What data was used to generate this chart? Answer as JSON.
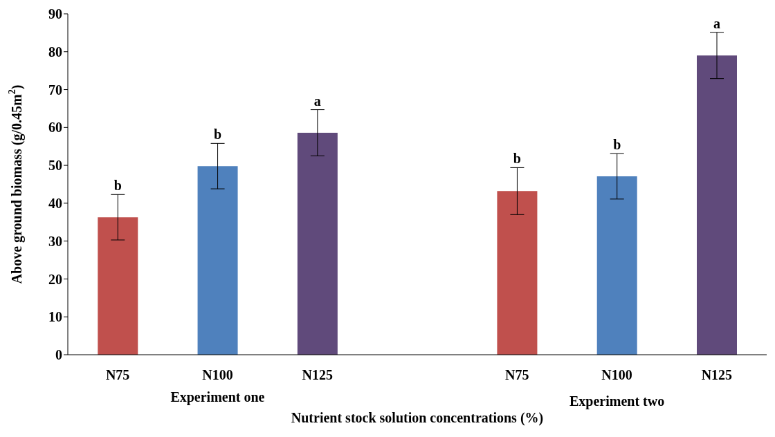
{
  "chart_data": {
    "type": "bar",
    "xlabel": "Nutrient stock solution concentrations (%)",
    "ylabel": "Above ground biomass (g/0.45m$^{2}$)",
    "categories": [
      "N75",
      "N100",
      "N125",
      null,
      "N75",
      "N100",
      "N125"
    ],
    "values": [
      36.3,
      49.8,
      58.6,
      null,
      43.2,
      47.1,
      79.0
    ],
    "errors": [
      6.0,
      6.0,
      6.1,
      null,
      6.2,
      6.0,
      6.1
    ],
    "colors": [
      "#c0504d",
      "#4f81bd",
      "#604a7b",
      null,
      "#c0504d",
      "#4f81bd",
      "#604a7b"
    ],
    "value_labels": [
      "b",
      "b",
      "a",
      null,
      "b",
      "b",
      "a"
    ],
    "annotations": [
      "Experiment one",
      "Experiment two"
    ],
    "ylim": [
      0,
      90
    ],
    "yticks": [
      0,
      10,
      20,
      30,
      40,
      50,
      60,
      70,
      80,
      90
    ],
    "grid": false,
    "legend": false
  }
}
